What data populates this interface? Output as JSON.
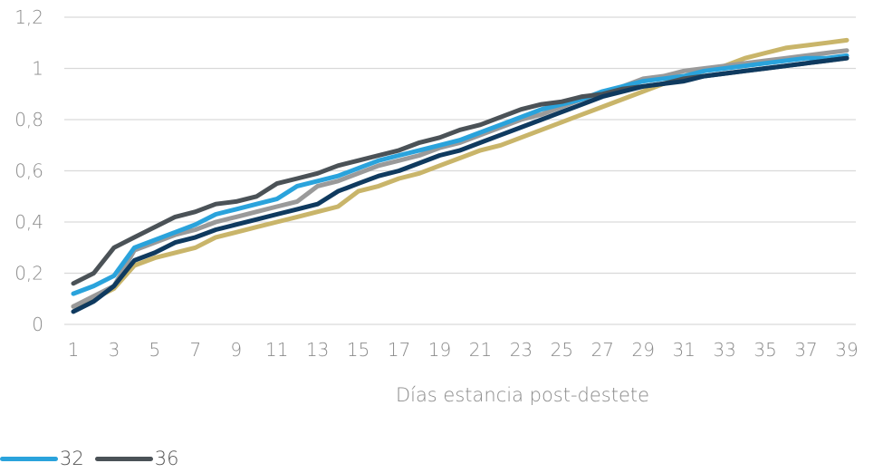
{
  "chart_data": {
    "type": "line",
    "xlabel": "Días estancia post-destete",
    "ylabel": "",
    "x": [
      1,
      2,
      3,
      4,
      5,
      6,
      7,
      8,
      9,
      10,
      11,
      12,
      13,
      14,
      15,
      16,
      17,
      18,
      19,
      20,
      21,
      22,
      23,
      24,
      25,
      26,
      27,
      28,
      29,
      30,
      31,
      32,
      33,
      34,
      35,
      36,
      37,
      38,
      39
    ],
    "x_tick_labels": [
      "1",
      "3",
      "5",
      "7",
      "9",
      "11",
      "13",
      "15",
      "17",
      "19",
      "21",
      "23",
      "25",
      "27",
      "29",
      "31",
      "33",
      "35",
      "37",
      "39"
    ],
    "y_tick_labels": [
      "0",
      "0,2",
      "0,4",
      "0,6",
      "0,8",
      "1",
      "1,2"
    ],
    "ylim": [
      0,
      1.2
    ],
    "grid": "horizontal",
    "legend_position": "bottom-left",
    "series": [
      {
        "color": "#c9b56a",
        "values": [
          0.07,
          0.1,
          0.14,
          0.23,
          0.26,
          0.28,
          0.3,
          0.34,
          0.36,
          0.38,
          0.4,
          0.42,
          0.44,
          0.46,
          0.52,
          0.54,
          0.57,
          0.59,
          0.62,
          0.65,
          0.68,
          0.7,
          0.73,
          0.76,
          0.79,
          0.82,
          0.85,
          0.88,
          0.91,
          0.94,
          0.97,
          0.99,
          1.01,
          1.04,
          1.06,
          1.08,
          1.09,
          1.1,
          1.11
        ]
      },
      {
        "color": "#9a9a9a",
        "values": [
          0.07,
          0.11,
          0.15,
          0.29,
          0.32,
          0.35,
          0.37,
          0.4,
          0.42,
          0.44,
          0.46,
          0.48,
          0.54,
          0.56,
          0.59,
          0.62,
          0.64,
          0.66,
          0.69,
          0.71,
          0.74,
          0.77,
          0.8,
          0.82,
          0.85,
          0.88,
          0.9,
          0.93,
          0.96,
          0.97,
          0.99,
          1.0,
          1.01,
          1.02,
          1.03,
          1.04,
          1.05,
          1.06,
          1.07
        ]
      },
      {
        "name": "32",
        "color": "#2aa3dc",
        "values": [
          0.12,
          0.15,
          0.19,
          0.3,
          0.33,
          0.36,
          0.39,
          0.43,
          0.45,
          0.47,
          0.49,
          0.54,
          0.56,
          0.58,
          0.61,
          0.64,
          0.66,
          0.68,
          0.7,
          0.72,
          0.75,
          0.78,
          0.81,
          0.84,
          0.86,
          0.88,
          0.91,
          0.93,
          0.95,
          0.96,
          0.97,
          0.99,
          1.0,
          1.01,
          1.02,
          1.03,
          1.04,
          1.04,
          1.05
        ]
      },
      {
        "name": "36",
        "color": "#4b5257",
        "values": [
          0.16,
          0.2,
          0.3,
          0.34,
          0.38,
          0.42,
          0.44,
          0.47,
          0.48,
          0.5,
          0.55,
          0.57,
          0.59,
          0.62,
          0.64,
          0.66,
          0.68,
          0.71,
          0.73,
          0.76,
          0.78,
          0.81,
          0.84,
          0.86,
          0.87,
          0.89,
          0.9,
          0.92,
          0.93,
          0.94,
          0.96,
          0.97,
          0.98,
          0.99,
          1.0,
          1.01,
          1.02,
          1.03,
          1.04
        ]
      },
      {
        "color": "#0f3a5f",
        "values": [
          0.05,
          0.09,
          0.15,
          0.25,
          0.28,
          0.32,
          0.34,
          0.37,
          0.39,
          0.41,
          0.43,
          0.45,
          0.47,
          0.52,
          0.55,
          0.58,
          0.6,
          0.63,
          0.66,
          0.68,
          0.71,
          0.74,
          0.77,
          0.8,
          0.83,
          0.86,
          0.89,
          0.91,
          0.93,
          0.94,
          0.95,
          0.97,
          0.98,
          0.99,
          1.0,
          1.01,
          1.02,
          1.03,
          1.04
        ]
      }
    ]
  },
  "legend": {
    "items": [
      {
        "label": "32",
        "color": "#2aa3dc"
      },
      {
        "label": "36",
        "color": "#4b5257"
      }
    ]
  }
}
